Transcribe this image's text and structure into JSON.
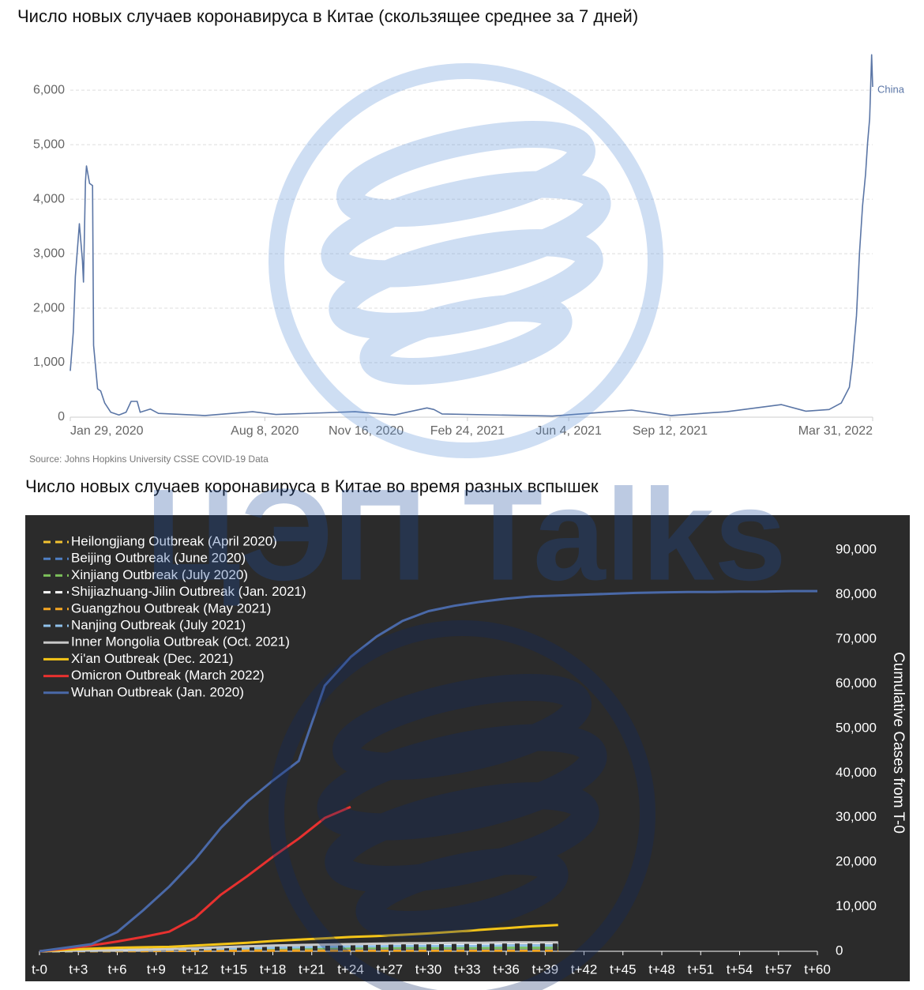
{
  "watermark": "ЦЭП Talks",
  "chart_data": [
    {
      "type": "line",
      "title": "Число новых случаев коронавируса в Китае (скользящее среднее за 7 дней)",
      "source": "Source: Johns Hopkins University CSSE COVID-19 Data",
      "x": [
        "2020-01-29",
        "2020-02-01",
        "2020-02-03",
        "2020-02-07",
        "2020-02-10",
        "2020-02-11",
        "2020-02-13",
        "2020-02-14",
        "2020-02-17",
        "2020-02-20",
        "2020-02-21",
        "2020-02-25",
        "2020-02-28",
        "2020-03-03",
        "2020-03-09",
        "2020-03-17",
        "2020-03-24",
        "2020-03-29",
        "2020-04-04",
        "2020-04-07",
        "2020-04-17",
        "2020-04-25",
        "2020-06-10",
        "2020-07-27",
        "2020-08-19",
        "2020-11-05",
        "2020-12-14",
        "2021-01-15",
        "2021-01-22",
        "2021-01-30",
        "2021-05-19",
        "2021-08-05",
        "2021-09-13",
        "2021-11-07",
        "2021-12-31",
        "2022-01-24",
        "2022-02-16",
        "2022-02-28",
        "2022-03-08",
        "2022-03-11",
        "2022-03-15",
        "2022-03-18",
        "2022-03-21",
        "2022-03-24",
        "2022-03-26",
        "2022-03-28",
        "2022-03-30",
        "2022-03-31"
      ],
      "series": [
        {
          "name": "China",
          "color": "#5b76a6",
          "values": [
            850,
            1560,
            2580,
            3550,
            2870,
            2480,
            4320,
            4610,
            4290,
            4250,
            1320,
            520,
            480,
            260,
            90,
            40,
            90,
            290,
            290,
            90,
            150,
            70,
            30,
            100,
            50,
            100,
            40,
            170,
            140,
            60,
            20,
            130,
            30,
            100,
            230,
            110,
            140,
            260,
            550,
            990,
            1860,
            3010,
            3880,
            4460,
            5040,
            5480,
            6650,
            6060
          ]
        }
      ],
      "xlim": [
        "2020-01-29",
        "2022-03-31"
      ],
      "xticks": [
        {
          "value": "2020-01-29",
          "label": "Jan 29, 2020"
        },
        {
          "value": "2020-08-08",
          "label": "Aug 8, 2020"
        },
        {
          "value": "2020-11-16",
          "label": "Nov 16, 2020"
        },
        {
          "value": "2021-02-24",
          "label": "Feb 24, 2021"
        },
        {
          "value": "2021-06-04",
          "label": "Jun 4, 2021"
        },
        {
          "value": "2021-09-12",
          "label": "Sep 12, 2021"
        },
        {
          "value": "2022-03-31",
          "label": "Mar 31, 2022"
        }
      ],
      "ylim": [
        0,
        6800
      ],
      "yticks": [
        0,
        {
          "value": 1000,
          "label": "1,000"
        },
        {
          "value": 2000,
          "label": "2,000"
        },
        {
          "value": 3000,
          "label": "3,000"
        },
        {
          "value": 4000,
          "label": "4,000"
        },
        {
          "value": 5000,
          "label": "5,000"
        },
        {
          "value": 6000,
          "label": "6,000"
        }
      ],
      "grid": true,
      "series_label_at_end": true
    },
    {
      "type": "line",
      "title": "Число новых случаев коронавируса в Китае во время разных вспышек",
      "y_axis_title": "Cumulative Cases from T-0",
      "background": "#2b2b2b",
      "y_axis_side": "right",
      "legend": "top-left",
      "grid": false,
      "x": [
        0,
        2,
        4,
        6,
        8,
        10,
        12,
        14,
        16,
        18,
        20,
        22,
        24,
        26,
        28,
        30,
        32,
        34,
        36,
        38,
        40,
        42,
        44,
        46,
        48,
        50,
        52,
        54,
        56,
        58,
        60
      ],
      "xlim": [
        0,
        60
      ],
      "xticks": [
        {
          "value": 0,
          "label": "t-0"
        },
        {
          "value": 3,
          "label": "t+3"
        },
        {
          "value": 6,
          "label": "t+6"
        },
        {
          "value": 9,
          "label": "t+9"
        },
        {
          "value": 12,
          "label": "t+12"
        },
        {
          "value": 15,
          "label": "t+15"
        },
        {
          "value": 18,
          "label": "t+18"
        },
        {
          "value": 21,
          "label": "t+21"
        },
        {
          "value": 24,
          "label": "t+24"
        },
        {
          "value": 27,
          "label": "t+27"
        },
        {
          "value": 30,
          "label": "t+30"
        },
        {
          "value": 33,
          "label": "t+33"
        },
        {
          "value": 36,
          "label": "t+36"
        },
        {
          "value": 39,
          "label": "t+39"
        },
        {
          "value": 42,
          "label": "t+42"
        },
        {
          "value": 45,
          "label": "t+45"
        },
        {
          "value": 48,
          "label": "t+48"
        },
        {
          "value": 51,
          "label": "t+51"
        },
        {
          "value": 54,
          "label": "t+54"
        },
        {
          "value": 57,
          "label": "t+57"
        },
        {
          "value": 60,
          "label": "t+60"
        }
      ],
      "ylim": [
        0,
        95000
      ],
      "yticks": [
        0,
        {
          "value": 10000,
          "label": "10,000"
        },
        {
          "value": 20000,
          "label": "20,000"
        },
        {
          "value": 30000,
          "label": "30,000"
        },
        {
          "value": 40000,
          "label": "40,000"
        },
        {
          "value": 50000,
          "label": "50,000"
        },
        {
          "value": 60000,
          "label": "60,000"
        },
        {
          "value": 70000,
          "label": "70,000"
        },
        {
          "value": 80000,
          "label": "80,000"
        },
        {
          "value": 90000,
          "label": "90,000"
        }
      ],
      "series": [
        {
          "name": "Heilongjiang  Outbreak (April 2020)",
          "color": "#f2c230",
          "dashed": true,
          "values": [
            0,
            50,
            100,
            150,
            200,
            250,
            300,
            350,
            400,
            450,
            500,
            550,
            600,
            650,
            700,
            700,
            750,
            750,
            800,
            800,
            800,
            null,
            null,
            null,
            null,
            null,
            null,
            null,
            null,
            null,
            null
          ]
        },
        {
          "name": "Beijing Outbreak (June 2020)",
          "color": "#4f7fc4",
          "dashed": true,
          "values": [
            0,
            50,
            100,
            150,
            200,
            250,
            300,
            330,
            350,
            370,
            390,
            400,
            410,
            420,
            420,
            420,
            420,
            420,
            420,
            420,
            420,
            null,
            null,
            null,
            null,
            null,
            null,
            null,
            null,
            null,
            null
          ]
        },
        {
          "name": "Xinjiang Outbreak (July 2020)",
          "color": "#7cc05a",
          "dashed": true,
          "values": [
            0,
            50,
            100,
            200,
            300,
            400,
            500,
            550,
            600,
            650,
            700,
            750,
            800,
            800,
            800,
            800,
            800,
            800,
            800,
            800,
            800,
            null,
            null,
            null,
            null,
            null,
            null,
            null,
            null,
            null,
            null
          ]
        },
        {
          "name": "Shijiazhuang-Jilin Outbreak (Jan. 2021)",
          "color": "#ffffff",
          "dashed": true,
          "values": [
            0,
            100,
            200,
            300,
            400,
            500,
            600,
            700,
            800,
            900,
            1000,
            1100,
            1200,
            1300,
            1400,
            1500,
            1600,
            1700,
            1800,
            1800,
            1800,
            null,
            null,
            null,
            null,
            null,
            null,
            null,
            null,
            null,
            null
          ]
        },
        {
          "name": "Guangzhou Outbreak (May 2021)",
          "color": "#f5a623",
          "dashed": true,
          "values": [
            0,
            10,
            20,
            40,
            60,
            80,
            100,
            110,
            120,
            130,
            140,
            150,
            150,
            150,
            150,
            150,
            150,
            150,
            150,
            150,
            150,
            null,
            null,
            null,
            null,
            null,
            null,
            null,
            null,
            null,
            null
          ]
        },
        {
          "name": "Nanjing Outbreak (July 2021)",
          "color": "#8fc0ea",
          "dashed": true,
          "values": [
            0,
            50,
            100,
            200,
            300,
            400,
            500,
            600,
            700,
            800,
            900,
            1000,
            1100,
            1100,
            1200,
            1200,
            1200,
            1200,
            1300,
            1300,
            1300,
            null,
            null,
            null,
            null,
            null,
            null,
            null,
            null,
            null,
            null
          ]
        },
        {
          "name": "Inner Mongolia Outbreak (Oct. 2021)",
          "color": "#c8c8c8",
          "dashed": false,
          "values": [
            0,
            100,
            200,
            300,
            400,
            500,
            700,
            900,
            1100,
            1300,
            1400,
            1500,
            1600,
            1700,
            1800,
            1800,
            1900,
            1900,
            2000,
            2000,
            2000,
            null,
            null,
            null,
            null,
            null,
            null,
            null,
            null,
            null,
            null
          ]
        },
        {
          "name": "Xi'an Outbreak (Dec. 2021)",
          "color": "#f5c518",
          "dashed": false,
          "values": [
            0,
            300,
            600,
            800,
            900,
            1000,
            1300,
            1600,
            1900,
            2300,
            2600,
            2900,
            3200,
            3400,
            3700,
            4000,
            4400,
            4800,
            5200,
            5600,
            5900,
            null,
            null,
            null,
            null,
            null,
            null,
            null,
            null,
            null,
            null
          ]
        },
        {
          "name": "Omicron Outbreak (March 2022)",
          "color": "#e8312f",
          "dashed": false,
          "values": [
            0,
            600,
            1300,
            2200,
            3200,
            4400,
            7500,
            12700,
            16800,
            21200,
            25300,
            29900,
            32400,
            null,
            null,
            null,
            null,
            null,
            null,
            null,
            null,
            null,
            null,
            null,
            null,
            null,
            null,
            null,
            null,
            null,
            null
          ]
        },
        {
          "name": "Wuhan Outbreak (Jan. 2020)",
          "color": "#4a69a8",
          "dashed": false,
          "values": [
            0,
            800,
            1600,
            4300,
            9200,
            14500,
            20600,
            27700,
            33500,
            38300,
            42700,
            59600,
            66000,
            70600,
            74100,
            76300,
            77500,
            78400,
            79100,
            79600,
            79800,
            80000,
            80200,
            80400,
            80500,
            80600,
            80600,
            80700,
            80700,
            80800,
            80800
          ]
        }
      ]
    }
  ]
}
